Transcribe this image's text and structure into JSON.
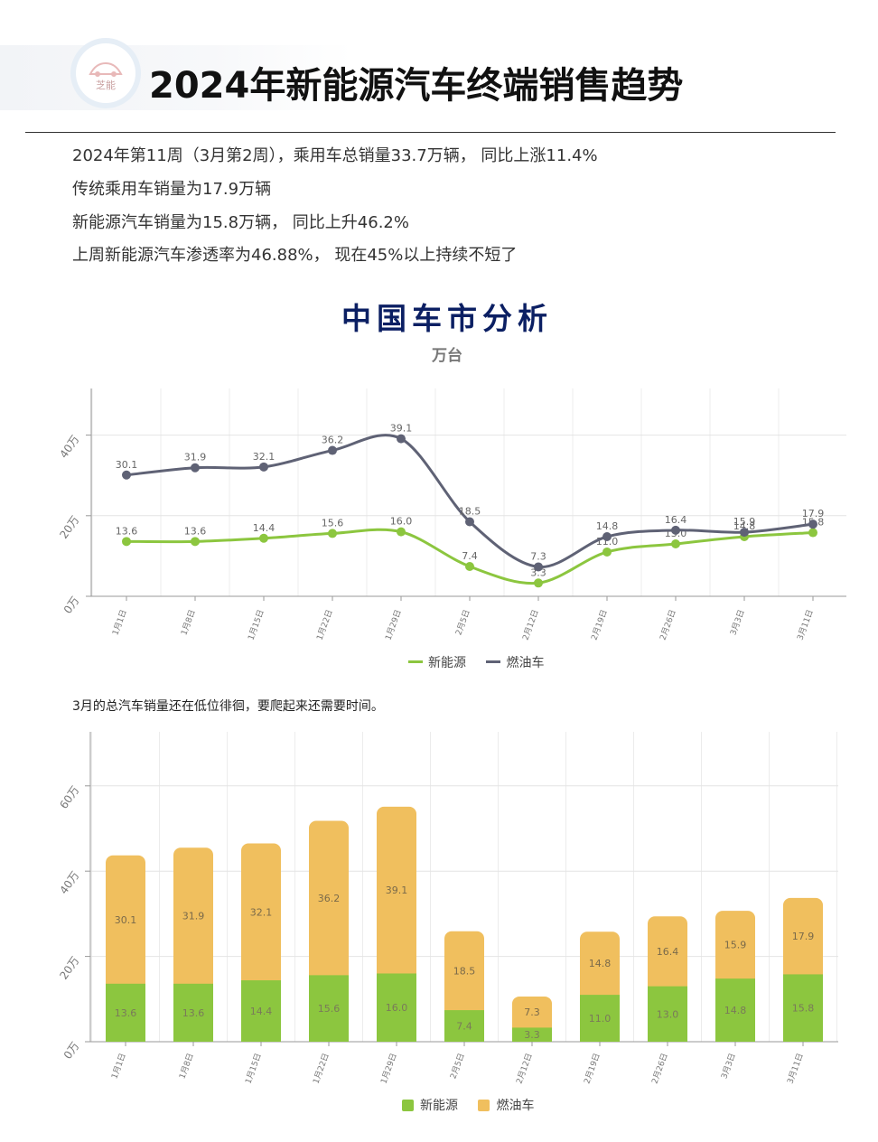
{
  "header": {
    "logo_text": "芝能",
    "title": "2024年新能源汽车终端销售趋势"
  },
  "summary": [
    "2024年第11周（3月第2周），乘用车总销量33.7万辆， 同比上涨11.4%",
    "传统乘用车销量为17.9万辆",
    "新能源汽车销量为15.8万辆， 同比上升46.2%",
    "上周新能源汽车渗透率为46.88%， 现在45%以上持续不短了"
  ],
  "colors": {
    "nev": "#8cc63f",
    "ice_line": "#5f6275",
    "ice_bar": "#f0bf5e",
    "title_navy": "#0b1f63"
  },
  "note": "3月的总汽车销量还在低位徘徊，要爬起来还需要时间。",
  "chart_data": [
    {
      "type": "line",
      "title": "中国车市分析",
      "subtitle": "万台",
      "categories": [
        "1月1日",
        "1月8日",
        "1月15日",
        "1月22日",
        "1月29日",
        "2月5日",
        "2月12日",
        "2月19日",
        "2月26日",
        "3月3日",
        "3月11日"
      ],
      "series": [
        {
          "name": "新能源",
          "values": [
            13.6,
            13.6,
            14.4,
            15.6,
            16.0,
            7.4,
            3.3,
            11.0,
            13.0,
            14.8,
            15.8
          ]
        },
        {
          "name": "燃油车",
          "values": [
            30.1,
            31.9,
            32.1,
            36.2,
            39.1,
            18.5,
            7.3,
            14.8,
            16.4,
            15.9,
            17.9
          ]
        }
      ],
      "yticks": [
        "0万",
        "20万",
        "40万"
      ],
      "ylim": [
        0,
        50
      ],
      "grid": true,
      "legend": "bottom-center"
    },
    {
      "type": "bar",
      "stacked": true,
      "categories": [
        "1月1日",
        "1月8日",
        "1月15日",
        "1月22日",
        "1月29日",
        "2月5日",
        "2月12日",
        "2月19日",
        "2月26日",
        "3月3日",
        "3月11日"
      ],
      "series": [
        {
          "name": "新能源",
          "values": [
            13.6,
            13.6,
            14.4,
            15.6,
            16.0,
            7.4,
            3.3,
            11.0,
            13.0,
            14.8,
            15.8
          ]
        },
        {
          "name": "燃油车",
          "values": [
            30.1,
            31.9,
            32.1,
            36.2,
            39.1,
            18.5,
            7.3,
            14.8,
            16.4,
            15.9,
            17.9
          ]
        }
      ],
      "yticks": [
        "0万",
        "20万",
        "40万",
        "60万"
      ],
      "ylim": [
        0,
        73
      ],
      "grid": true,
      "legend": "bottom-center"
    }
  ]
}
